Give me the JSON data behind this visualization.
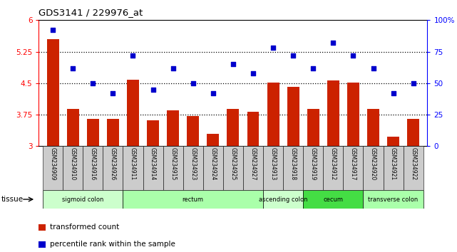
{
  "title": "GDS3141 / 229976_at",
  "samples": [
    "GSM234909",
    "GSM234910",
    "GSM234916",
    "GSM234926",
    "GSM234911",
    "GSM234914",
    "GSM234915",
    "GSM234923",
    "GSM234924",
    "GSM234925",
    "GSM234927",
    "GSM234913",
    "GSM234918",
    "GSM234919",
    "GSM234912",
    "GSM234917",
    "GSM234920",
    "GSM234921",
    "GSM234922"
  ],
  "bar_values": [
    5.55,
    3.88,
    3.65,
    3.65,
    4.58,
    3.62,
    3.85,
    3.72,
    3.3,
    3.88,
    3.82,
    4.52,
    4.42,
    3.88,
    4.57,
    4.52,
    3.88,
    3.22,
    3.65
  ],
  "dot_values": [
    92,
    62,
    50,
    42,
    72,
    45,
    62,
    50,
    42,
    65,
    58,
    78,
    72,
    62,
    82,
    72,
    62,
    42,
    50
  ],
  "bar_color": "#cc2200",
  "dot_color": "#0000cc",
  "ylim_left": [
    3.0,
    6.0
  ],
  "ylim_right": [
    0,
    100
  ],
  "yticks_left": [
    3.0,
    3.75,
    4.5,
    5.25,
    6.0
  ],
  "yticks_right": [
    0,
    25,
    50,
    75,
    100
  ],
  "ytick_labels_left": [
    "3",
    "3.75",
    "4.5",
    "5.25",
    "6"
  ],
  "ytick_labels_right": [
    "0",
    "25",
    "50",
    "75",
    "100%"
  ],
  "hlines": [
    3.75,
    4.5,
    5.25
  ],
  "tissue_groups": [
    {
      "label": "sigmoid colon",
      "start": 0,
      "end": 4,
      "color": "#ccffcc"
    },
    {
      "label": "rectum",
      "start": 4,
      "end": 11,
      "color": "#aaffaa"
    },
    {
      "label": "ascending colon",
      "start": 11,
      "end": 13,
      "color": "#ccffcc"
    },
    {
      "label": "cecum",
      "start": 13,
      "end": 16,
      "color": "#44dd44"
    },
    {
      "label": "transverse colon",
      "start": 16,
      "end": 19,
      "color": "#aaffaa"
    }
  ],
  "legend_bar_label": "transformed count",
  "legend_dot_label": "percentile rank within the sample",
  "tissue_label": "tissue",
  "xtick_bg": "#cccccc",
  "plot_bg": "#ffffff"
}
